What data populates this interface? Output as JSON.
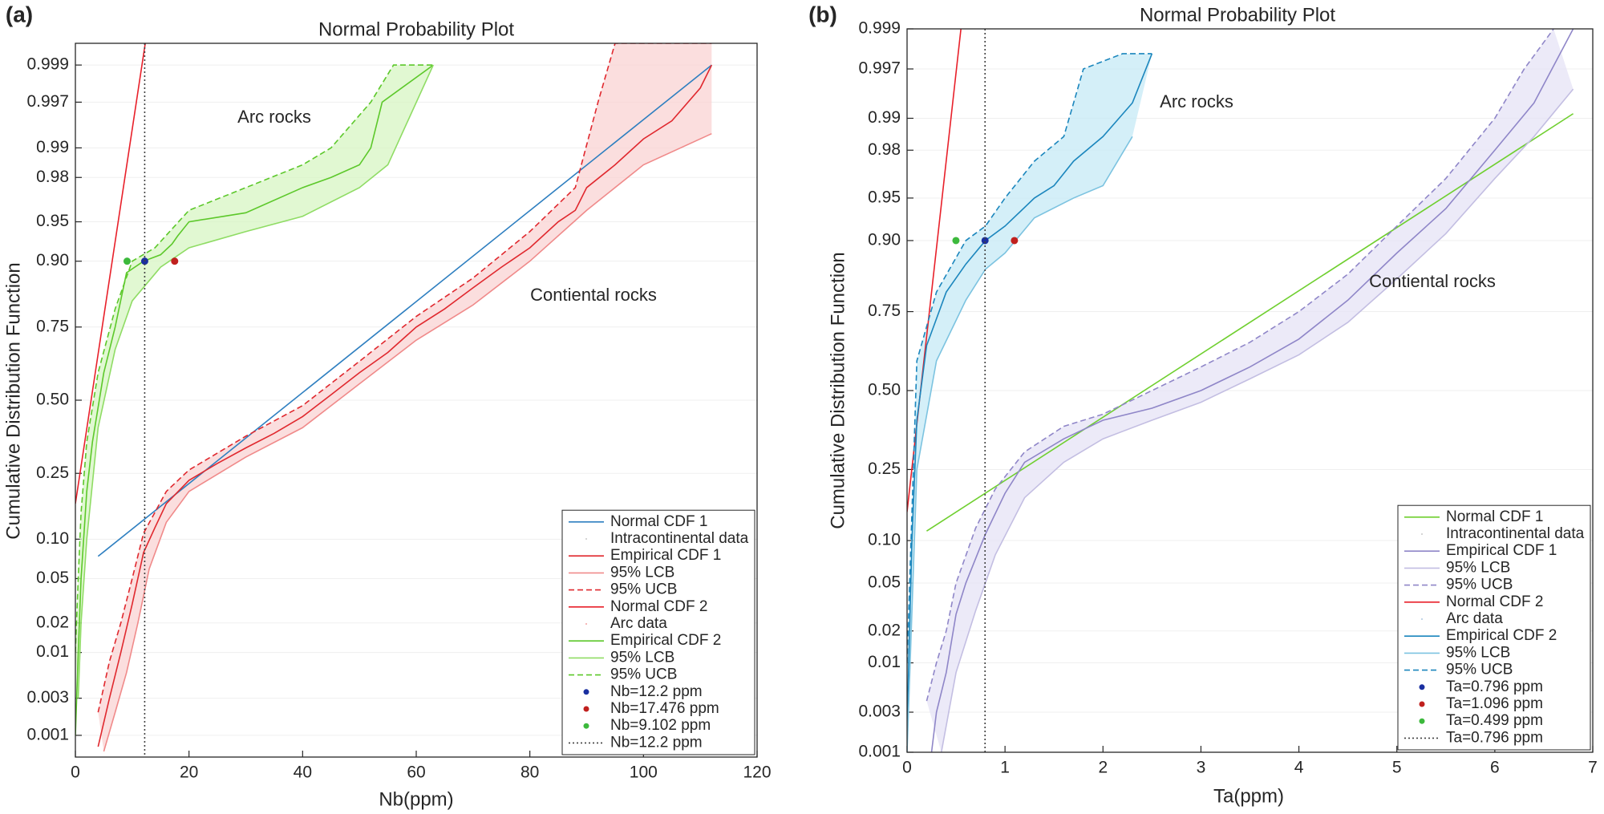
{
  "chart_data": [
    {
      "type": "normal-probability",
      "label": "(a)",
      "title": "Normal Probability Plot",
      "x_label": "Nb(ppm)",
      "y_label": "Cumulative Distribution Function",
      "annotations": [
        "Arc rocks",
        "Contiental rocks"
      ],
      "xlim": [
        0,
        120
      ],
      "xticks": [
        0,
        20,
        40,
        60,
        80,
        100,
        120
      ],
      "ylim": [
        0.0005,
        0.9995
      ],
      "yticks": [
        0.001,
        0.003,
        {
          "value": 0.01,
          "label": "0.01"
        },
        0.02,
        0.05,
        {
          "value": 0.1,
          "label": "0.10"
        },
        0.25,
        {
          "value": 0.5,
          "label": "0.50"
        },
        0.75,
        {
          "value": 0.9,
          "label": "0.90"
        },
        0.95,
        0.98,
        0.99,
        0.997,
        0.999
      ],
      "grid": true,
      "legend": "lower right",
      "series": [
        {
          "name": "Normal CDF 1",
          "color": "#2e7fc0",
          "style": "solid",
          "x": [
            4,
            112
          ],
          "values": [
            0.075,
            0.999
          ]
        },
        {
          "name": "Intracontinental data",
          "color": "#c8c8c8",
          "style": "dots",
          "x": [],
          "values": []
        },
        {
          "name": "Empirical CDF 1",
          "color": "#e0282e",
          "style": "solid",
          "x": [
            4,
            6,
            8,
            10,
            12,
            14,
            16,
            20,
            25,
            30,
            35,
            40,
            45,
            50,
            55,
            60,
            65,
            70,
            75,
            80,
            85,
            88,
            90,
            95,
            100,
            105,
            110,
            112
          ],
          "values": [
            0.0007,
            0.003,
            0.01,
            0.03,
            0.08,
            0.12,
            0.17,
            0.23,
            0.28,
            0.33,
            0.38,
            0.44,
            0.52,
            0.6,
            0.67,
            0.75,
            0.8,
            0.85,
            0.89,
            0.92,
            0.95,
            0.96,
            0.975,
            0.985,
            0.992,
            0.995,
            0.998,
            0.999
          ]
        },
        {
          "name": "95% LCB",
          "color": "#f08a8a",
          "style": "solid",
          "fill": "#f9d3d3",
          "x": [
            5,
            7,
            9,
            11,
            13,
            16,
            20,
            30,
            40,
            50,
            60,
            70,
            80,
            90,
            100,
            112
          ],
          "values": [
            0.0006,
            0.002,
            0.006,
            0.02,
            0.06,
            0.13,
            0.2,
            0.3,
            0.4,
            0.56,
            0.71,
            0.81,
            0.9,
            0.96,
            0.985,
            0.993
          ]
        },
        {
          "name": "95% UCB",
          "color": "#e0282e",
          "style": "dashed",
          "x": [
            4,
            6,
            8,
            10,
            12,
            16,
            20,
            30,
            40,
            50,
            60,
            70,
            80,
            88,
            92,
            95,
            112
          ],
          "values": [
            0.002,
            0.008,
            0.02,
            0.05,
            0.11,
            0.2,
            0.26,
            0.37,
            0.48,
            0.64,
            0.78,
            0.87,
            0.94,
            0.975,
            0.997,
            0.9995,
            0.9995
          ]
        },
        {
          "name": "Normal CDF 2",
          "color": "#e8202a",
          "style": "solid",
          "x": [
            0,
            12.3
          ],
          "values": [
            0.17,
            0.9995
          ]
        },
        {
          "name": "Arc data",
          "color": "#f4a0a0",
          "style": "dots",
          "x": [],
          "values": []
        },
        {
          "name": "Empirical CDF 2",
          "color": "#5cc82a",
          "style": "solid",
          "x": [
            0,
            0.5,
            1,
            2,
            3,
            5,
            7,
            9,
            12,
            15,
            17,
            18,
            20,
            30,
            40,
            45,
            50,
            52,
            54,
            63
          ],
          "values": [
            0.001,
            0.01,
            0.05,
            0.2,
            0.35,
            0.6,
            0.75,
            0.88,
            0.9,
            0.91,
            0.925,
            0.935,
            0.95,
            0.958,
            0.975,
            0.98,
            0.985,
            0.99,
            0.997,
            0.999
          ]
        },
        {
          "name": "95% LCB",
          "color": "#8fdc64",
          "style": "solid",
          "fill": "#d7f5c3",
          "x": [
            0.5,
            1,
            2,
            4,
            7,
            10,
            15,
            20,
            30,
            40,
            50,
            55,
            63
          ],
          "values": [
            0.003,
            0.02,
            0.1,
            0.4,
            0.68,
            0.82,
            0.89,
            0.92,
            0.94,
            0.955,
            0.975,
            0.985,
            0.999
          ]
        },
        {
          "name": "95% UCB",
          "color": "#5cc82a",
          "style": "dashed",
          "x": [
            0,
            0.5,
            1,
            2,
            4,
            7,
            10,
            14,
            20,
            30,
            40,
            45,
            52,
            56,
            63
          ],
          "values": [
            0.01,
            0.05,
            0.15,
            0.35,
            0.6,
            0.8,
            0.9,
            0.92,
            0.96,
            0.975,
            0.985,
            0.99,
            0.997,
            0.999,
            0.999
          ]
        },
        {
          "name": "Nb=12.2 ppm",
          "color": "#1a2fa0",
          "style": "point",
          "x": [
            12.2
          ],
          "values": [
            0.9
          ]
        },
        {
          "name": "Nb=17.476 ppm",
          "color": "#c0201e",
          "style": "point",
          "x": [
            17.476
          ],
          "values": [
            0.9
          ]
        },
        {
          "name": "Nb=9.102 ppm",
          "color": "#3cb93c",
          "style": "point",
          "x": [
            9.102
          ],
          "values": [
            0.9
          ]
        },
        {
          "name": "Nb=12.2 ppm",
          "color": "#404040",
          "style": "vline",
          "x": [
            12.2
          ]
        }
      ]
    },
    {
      "type": "normal-probability",
      "label": "(b)",
      "title": "Normal Probability Plot",
      "x_label": "Ta(ppm)",
      "y_label": "Cumulative Distribution Function",
      "annotations": [
        "Arc rocks",
        "Contiental rocks"
      ],
      "xlim": [
        0,
        7
      ],
      "xticks": [
        0,
        1,
        2,
        3,
        4,
        5,
        6,
        7
      ],
      "ylim": [
        0.001,
        0.999
      ],
      "yticks": [
        0.001,
        0.003,
        {
          "value": 0.01,
          "label": "0.01"
        },
        0.02,
        0.05,
        {
          "value": 0.1,
          "label": "0.10"
        },
        0.25,
        {
          "value": 0.5,
          "label": "0.50"
        },
        0.75,
        {
          "value": 0.9,
          "label": "0.90"
        },
        0.95,
        0.98,
        0.99,
        0.997,
        0.999
      ],
      "grid": true,
      "legend": "lower right",
      "series": [
        {
          "name": "Normal CDF 1",
          "color": "#6fcf2f",
          "style": "solid",
          "x": [
            0.2,
            6.8
          ],
          "values": [
            0.115,
            0.991
          ]
        },
        {
          "name": "Intracontinental data",
          "color": "#c8c8c8",
          "style": "dots",
          "x": [],
          "values": []
        },
        {
          "name": "Empirical CDF 1",
          "color": "#8f86c8",
          "style": "solid",
          "x": [
            0.25,
            0.3,
            0.4,
            0.5,
            0.6,
            0.8,
            1.0,
            1.2,
            1.6,
            2,
            2.5,
            3,
            3.5,
            4,
            4.5,
            5,
            5.5,
            6,
            6.4,
            6.8
          ],
          "values": [
            0.001,
            0.003,
            0.008,
            0.028,
            0.05,
            0.11,
            0.19,
            0.27,
            0.34,
            0.4,
            0.44,
            0.5,
            0.58,
            0.67,
            0.78,
            0.88,
            0.94,
            0.98,
            0.993,
            0.999
          ]
        },
        {
          "name": "95% LCB",
          "color": "#c3bee2",
          "style": "solid",
          "fill": "#e6e3f6",
          "x": [
            0.35,
            0.5,
            0.7,
            0.9,
            1.2,
            1.6,
            2,
            2.5,
            3,
            3.5,
            4,
            4.5,
            5,
            5.5,
            6,
            6.4,
            6.8
          ],
          "values": [
            0.001,
            0.008,
            0.03,
            0.08,
            0.18,
            0.27,
            0.34,
            0.4,
            0.46,
            0.54,
            0.62,
            0.72,
            0.83,
            0.91,
            0.965,
            0.985,
            0.995
          ]
        },
        {
          "name": "95% UCB",
          "color": "#8f86c8",
          "style": "dashed",
          "x": [
            0.2,
            0.3,
            0.4,
            0.5,
            0.7,
            0.9,
            1.2,
            1.6,
            2,
            2.5,
            3,
            3.5,
            4,
            4.5,
            5,
            5.5,
            6,
            6.3,
            6.6
          ],
          "values": [
            0.004,
            0.01,
            0.02,
            0.05,
            0.12,
            0.2,
            0.3,
            0.38,
            0.42,
            0.5,
            0.58,
            0.66,
            0.75,
            0.84,
            0.92,
            0.965,
            0.99,
            0.997,
            0.999
          ]
        },
        {
          "name": "Normal CDF 2",
          "color": "#e8202a",
          "style": "solid",
          "x": [
            0,
            0.55
          ],
          "values": [
            0.15,
            0.999
          ]
        },
        {
          "name": "Arc data",
          "color": "#b0c8e0",
          "style": "dots",
          "x": [],
          "values": []
        },
        {
          "name": "Empirical CDF 2",
          "color": "#1b86bd",
          "style": "solid",
          "x": [
            0,
            0.05,
            0.1,
            0.2,
            0.4,
            0.6,
            0.8,
            1,
            1.3,
            1.5,
            1.7,
            2,
            2.3,
            2.5
          ],
          "values": [
            0.002,
            0.1,
            0.4,
            0.65,
            0.8,
            0.86,
            0.9,
            0.92,
            0.95,
            0.96,
            0.975,
            0.985,
            0.993,
            0.998
          ]
        },
        {
          "name": "95% LCB",
          "color": "#7cc3e0",
          "style": "solid",
          "fill": "#c5e9f6",
          "x": [
            0,
            0.1,
            0.3,
            0.6,
            0.8,
            1,
            1.3,
            1.7,
            2,
            2.3
          ],
          "values": [
            0.001,
            0.25,
            0.6,
            0.78,
            0.85,
            0.88,
            0.93,
            0.95,
            0.96,
            0.985
          ]
        },
        {
          "name": "95% UCB",
          "color": "#1b86bd",
          "style": "dashed",
          "x": [
            0,
            0.1,
            0.3,
            0.6,
            0.8,
            1,
            1.3,
            1.6,
            1.7,
            1.8,
            2.2,
            2.5
          ],
          "values": [
            0.01,
            0.6,
            0.8,
            0.9,
            0.92,
            0.95,
            0.975,
            0.985,
            0.993,
            0.997,
            0.998,
            0.998
          ]
        },
        {
          "name": "Ta=0.796 ppm",
          "color": "#1a2fa0",
          "style": "point",
          "x": [
            0.796
          ],
          "values": [
            0.9
          ]
        },
        {
          "name": "Ta=1.096 ppm",
          "color": "#c0201e",
          "style": "point",
          "x": [
            1.096
          ],
          "values": [
            0.9
          ]
        },
        {
          "name": "Ta=0.499 ppm",
          "color": "#3cb93c",
          "style": "point",
          "x": [
            0.499
          ],
          "values": [
            0.9
          ]
        },
        {
          "name": "Ta=0.796 ppm",
          "color": "#404040",
          "style": "vline",
          "x": [
            0.796
          ]
        }
      ]
    }
  ]
}
